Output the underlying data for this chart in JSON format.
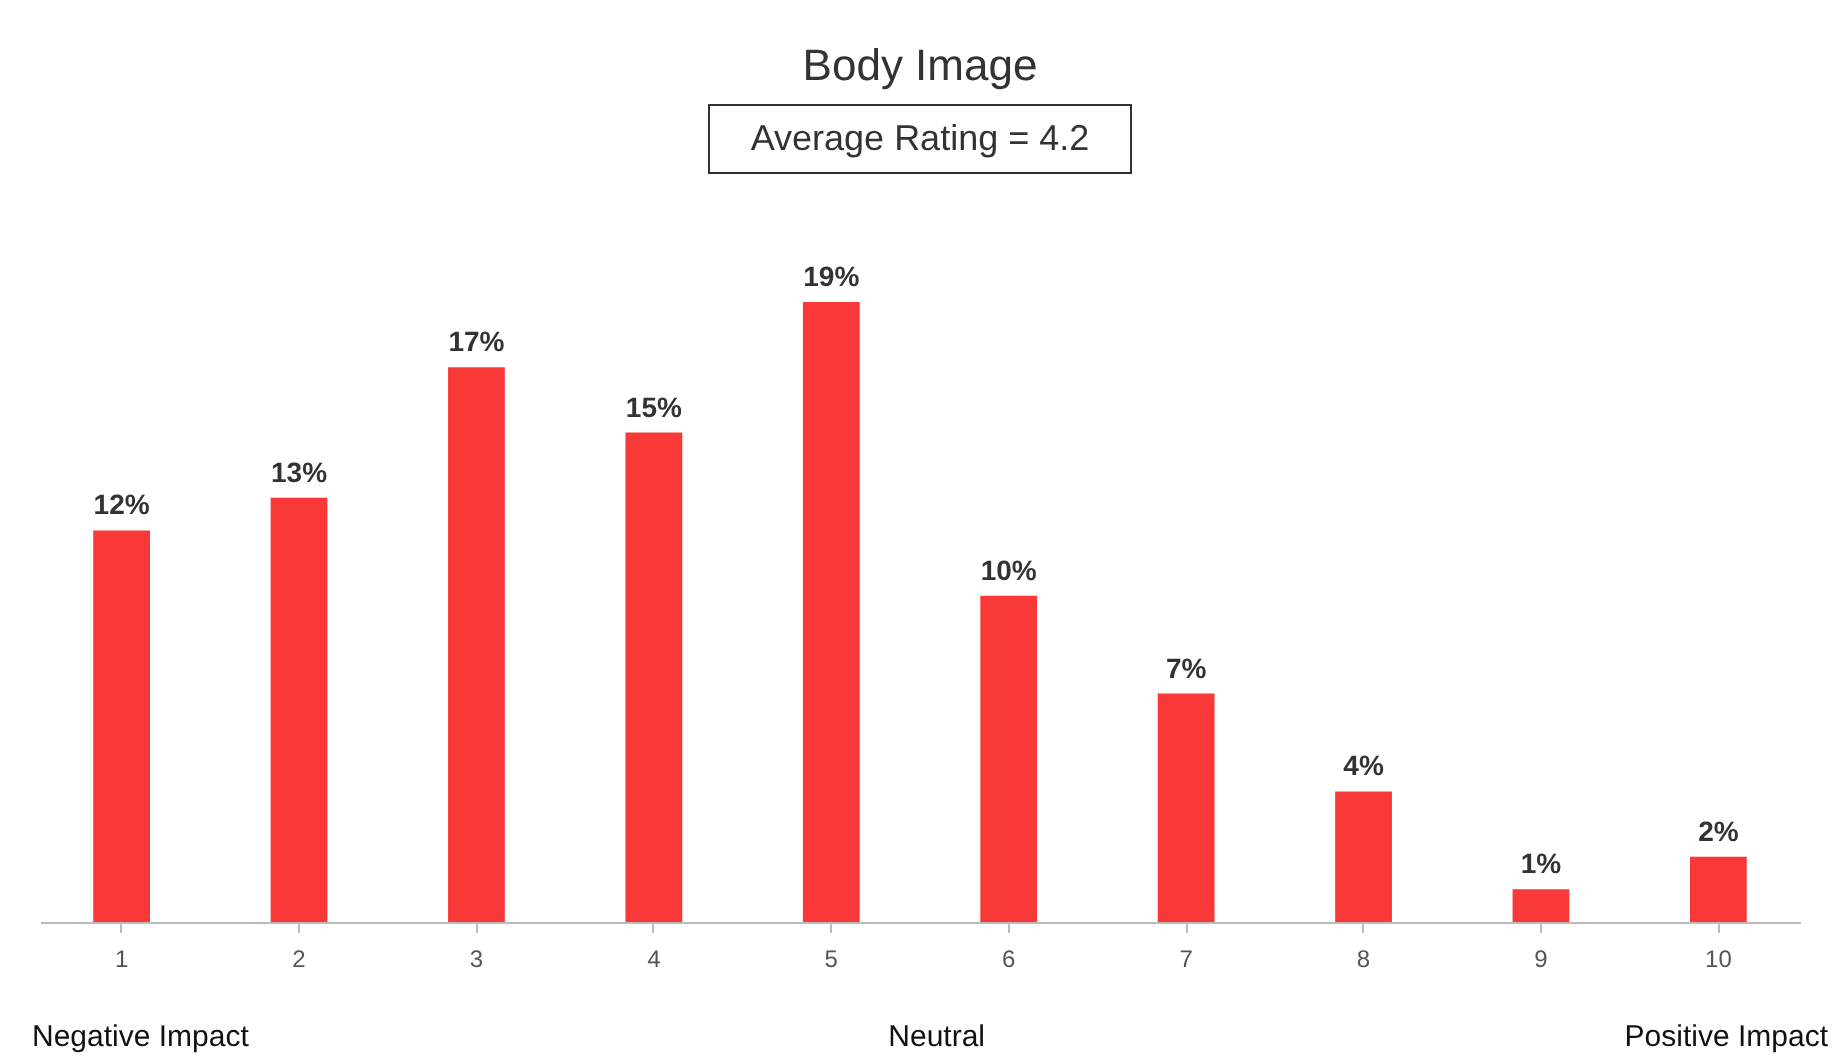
{
  "chart_data": {
    "type": "bar",
    "title": "Body Image",
    "subtitle": "Average Rating = 4.2",
    "categories": [
      "1",
      "2",
      "3",
      "4",
      "5",
      "6",
      "7",
      "8",
      "9",
      "10"
    ],
    "values": [
      12,
      13,
      17,
      15,
      19,
      10,
      7,
      4,
      1,
      2
    ],
    "value_labels": [
      "12%",
      "13%",
      "17%",
      "15%",
      "19%",
      "10%",
      "7%",
      "4%",
      "1%",
      "2%"
    ],
    "color": "#f93838",
    "annotations": [
      "Negative Impact",
      "Neutral",
      "Positive Impact"
    ]
  }
}
